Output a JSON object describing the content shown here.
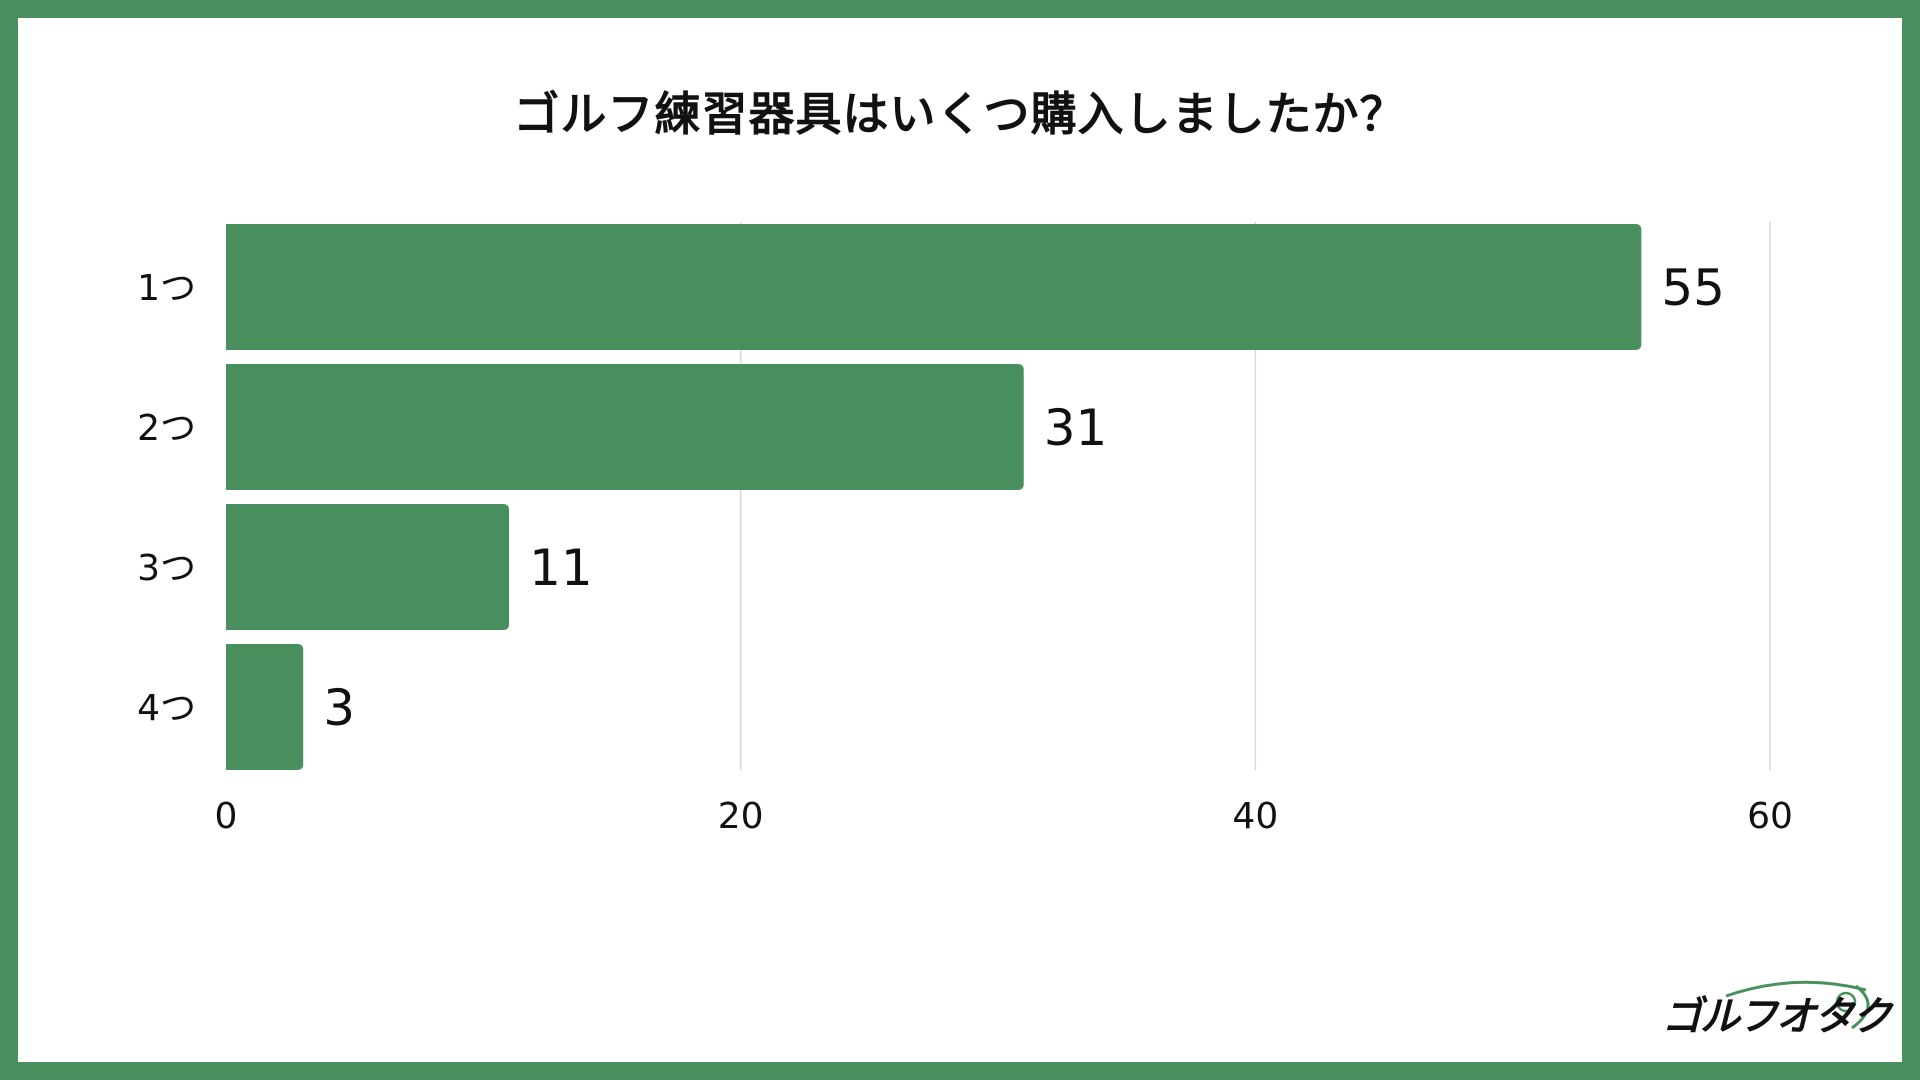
{
  "colors": {
    "frame": "#4a8f5e",
    "bar": "#4a8f5e",
    "grid": "#d9d9d9",
    "text": "#111111"
  },
  "logo": {
    "text": "ゴルフオタク"
  },
  "chart_data": {
    "type": "bar",
    "orientation": "horizontal",
    "title": "ゴルフ練習器具はいくつ購入しましたか？",
    "categories": [
      "1つ",
      "2つ",
      "3つ",
      "4つ"
    ],
    "values": [
      55,
      31,
      11,
      3
    ],
    "xlim": [
      0,
      60
    ],
    "xticks": [
      0,
      20,
      40,
      60
    ],
    "grid": true,
    "legend": "none"
  }
}
